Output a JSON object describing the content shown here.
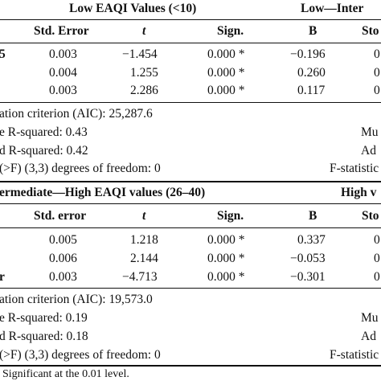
{
  "table1": {
    "group_left": "Low EAQI Values (<10)",
    "group_right": "Low—Inter",
    "headers": [
      "Std. Error",
      "t",
      "Sign.",
      "B",
      "Sto"
    ],
    "row_stub": "5",
    "rows": [
      [
        "0.003",
        "−1.454",
        "0.000 *",
        "−0.196",
        "0"
      ],
      [
        "0.004",
        "1.255",
        "0.000 *",
        "0.260",
        "0"
      ],
      [
        "0.003",
        "2.286",
        "0.000 *",
        "0.117",
        "0"
      ]
    ],
    "stats_left": [
      "ation criterion (AIC): 25,287.6",
      "e R-squared: 0.43",
      "d R-squared: 0.42",
      "(>F) (3,3) degrees of freedom: 0"
    ],
    "stats_right": [
      "",
      "Mu",
      "Ad",
      "F-statistic"
    ]
  },
  "table2": {
    "group_left": "ermediate—High EAQI values (26–40)",
    "group_right": "High v",
    "headers": [
      "Std. error",
      "t",
      "Sign.",
      "B",
      "Sto"
    ],
    "row_stub": "r",
    "rows": [
      [
        "0.005",
        "1.218",
        "0.000 *",
        "0.337",
        "0"
      ],
      [
        "0.006",
        "2.144",
        "0.000 *",
        "−0.053",
        "0"
      ],
      [
        "0.003",
        "−4.713",
        "0.000 *",
        "−0.301",
        "0"
      ]
    ],
    "stats_left": [
      "ation criterion (AIC): 19,573.0",
      "e R-squared: 0.19",
      "d R-squared: 0.18",
      " (>F) (3,3) degrees of freedom: 0"
    ],
    "stats_right": [
      "",
      "Mu",
      "Ad",
      "F-statistic"
    ]
  },
  "footnote": "Significant at the 0.01 level."
}
